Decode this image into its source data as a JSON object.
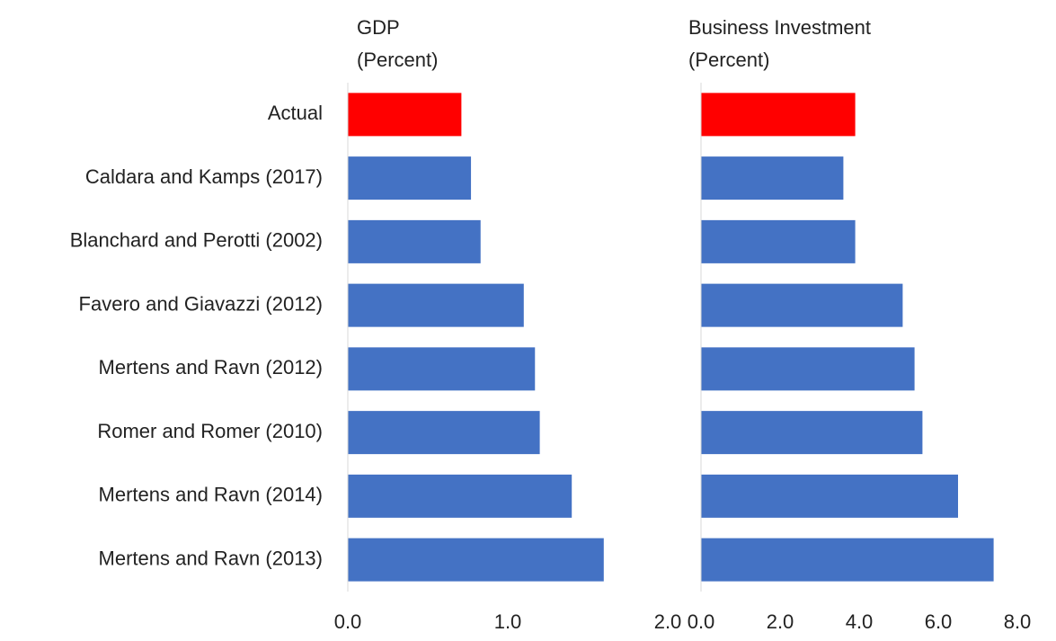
{
  "chart_data": [
    {
      "type": "bar",
      "orientation": "horizontal",
      "title": [
        "GDP",
        "(Percent)"
      ],
      "categories": [
        "Actual",
        "Caldara and Kamps (2017)",
        "Blanchard and Perotti (2002)",
        "Favero and Giavazzi (2012)",
        "Mertens and Ravn (2012)",
        "Romer and Romer (2010)",
        "Mertens and Ravn (2014)",
        "Mertens and Ravn (2013)"
      ],
      "values": [
        0.71,
        0.77,
        0.83,
        1.1,
        1.17,
        1.2,
        1.4,
        1.6
      ],
      "colors": [
        "#ff0000",
        "#4472c4",
        "#4472c4",
        "#4472c4",
        "#4472c4",
        "#4472c4",
        "#4472c4",
        "#4472c4"
      ],
      "xlim": [
        0,
        2
      ],
      "xticks": [
        {
          "value": 0,
          "label": "0.0"
        },
        {
          "value": 1,
          "label": "1.0"
        },
        {
          "value": 2,
          "label": "2.0"
        }
      ]
    },
    {
      "type": "bar",
      "orientation": "horizontal",
      "title": [
        "Business Investment",
        "(Percent)"
      ],
      "values": [
        3.9,
        3.6,
        3.9,
        5.1,
        5.4,
        5.6,
        6.5,
        7.4
      ],
      "colors": [
        "#ff0000",
        "#4472c4",
        "#4472c4",
        "#4472c4",
        "#4472c4",
        "#4472c4",
        "#4472c4",
        "#4472c4"
      ],
      "xlim": [
        0,
        8
      ],
      "xticks": [
        {
          "value": 0,
          "label": "0.0"
        },
        {
          "value": 2,
          "label": "2.0"
        },
        {
          "value": 4,
          "label": "4.0"
        },
        {
          "value": 6,
          "label": "6.0"
        },
        {
          "value": 8,
          "label": "8.0"
        }
      ]
    }
  ]
}
